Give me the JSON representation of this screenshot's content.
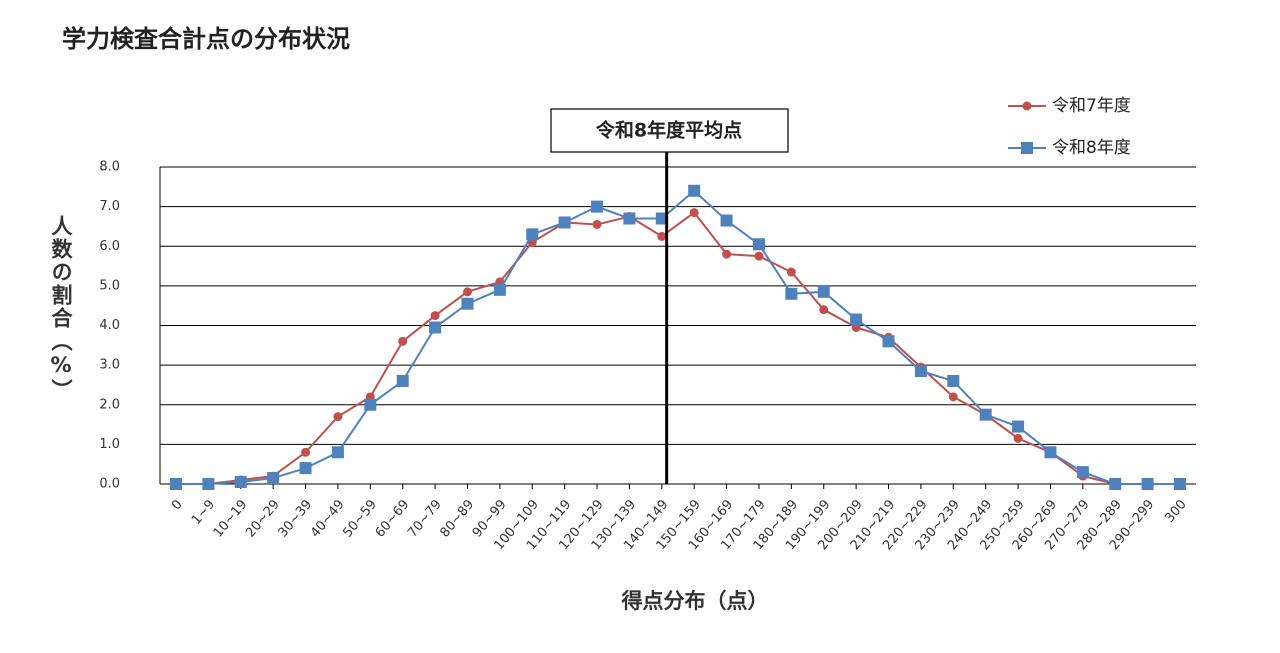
{
  "chart_data": {
    "type": "line",
    "title": "学力検査合計点の分布状況",
    "x_label": "得点分布（点）",
    "y_label": "人数の割合（%）",
    "categories": [
      "0",
      "1~9",
      "10~19",
      "20~29",
      "30~39",
      "40~49",
      "50~59",
      "60~69",
      "70~79",
      "80~89",
      "90~99",
      "100~109",
      "110~119",
      "120~129",
      "130~139",
      "140~149",
      "150~159",
      "160~169",
      "170~179",
      "180~189",
      "190~199",
      "200~209",
      "210~219",
      "220~229",
      "230~239",
      "240~249",
      "250~259",
      "260~269",
      "270~279",
      "280~289",
      "290~299",
      "300"
    ],
    "series": [
      {
        "name": "令和7年度",
        "color": "#c0504d",
        "marker": "circle",
        "values": [
          0,
          0,
          0.1,
          0.2,
          0.8,
          1.7,
          2.2,
          3.6,
          4.25,
          4.85,
          5.1,
          6.1,
          6.6,
          6.55,
          6.75,
          6.25,
          6.85,
          5.8,
          5.75,
          5.35,
          4.4,
          3.95,
          3.7,
          2.95,
          2.2,
          1.75,
          1.15,
          0.8,
          0.2,
          0,
          0,
          0
        ]
      },
      {
        "name": "令和8年度",
        "color": "#4f81bd",
        "marker": "square",
        "values": [
          0,
          0,
          0.05,
          0.15,
          0.4,
          0.8,
          2.0,
          2.6,
          3.95,
          4.55,
          4.9,
          6.3,
          6.6,
          7.0,
          6.7,
          6.7,
          7.4,
          6.65,
          6.05,
          4.8,
          4.85,
          4.15,
          3.6,
          2.85,
          2.6,
          1.75,
          1.45,
          0.8,
          0.3,
          0,
          0,
          0
        ]
      }
    ],
    "annotation": {
      "label": "令和8年度平均点",
      "x": 15.15
    },
    "ylim": [
      0,
      8
    ],
    "yticks": [
      {
        "value": 0,
        "label": "0.0"
      },
      {
        "value": 1,
        "label": "1.0"
      },
      {
        "value": 2,
        "label": "2.0"
      },
      {
        "value": 3,
        "label": "3.0"
      },
      {
        "value": 4,
        "label": "4.0"
      },
      {
        "value": 5,
        "label": "5.0"
      },
      {
        "value": 6,
        "label": "6.0"
      },
      {
        "value": 7,
        "label": "7.0"
      },
      {
        "value": 8,
        "label": "8.0"
      }
    ],
    "grid": true
  }
}
